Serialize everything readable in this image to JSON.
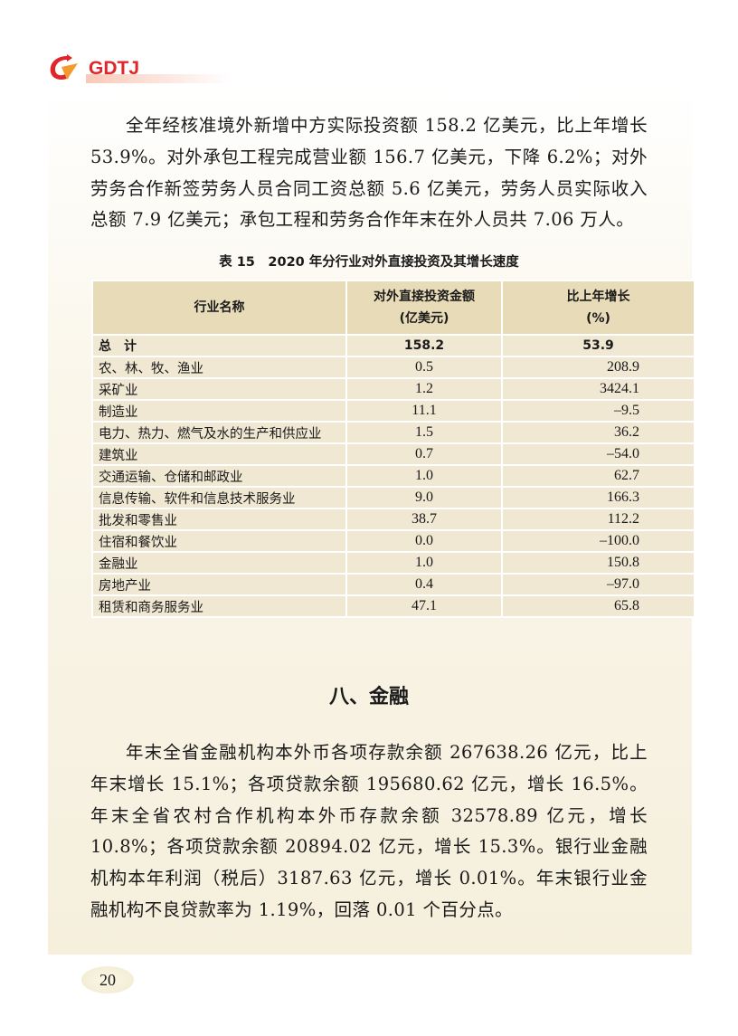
{
  "header": {
    "logo_text": "GDTJ",
    "brand_color": "#e0262a",
    "accent_color": "#f39a2c"
  },
  "intro_paragraph": "全年经核准境外新增中方实际投资额 158.2 亿美元，比上年增长 53.9%。对外承包工程完成营业额 156.7 亿美元，下降 6.2%；对外劳务合作新签劳务人员合同工资总额 5.6 亿美元，劳务人员实际收入总额 7.9 亿美元；承包工程和劳务合作年末在外人员共 7.06 万人。",
  "table": {
    "title": "表 15　2020 年分行业对外直接投资及其增长速度",
    "headers": [
      "行业名称",
      "对外直接投资金额\n(亿美元)",
      "比上年增长\n(%)"
    ],
    "rows": [
      [
        "总计",
        "158.2",
        "53.9"
      ],
      [
        "农、林、牧、渔业",
        "0.5",
        "208.9"
      ],
      [
        "采矿业",
        "1.2",
        "3424.1"
      ],
      [
        "制造业",
        "11.1",
        "–9.5"
      ],
      [
        "电力、热力、燃气及水的生产和供应业",
        "1.5",
        "36.2"
      ],
      [
        "建筑业",
        "0.7",
        "–54.0"
      ],
      [
        "交通运输、仓储和邮政业",
        "1.0",
        "62.7"
      ],
      [
        "信息传输、软件和信息技术服务业",
        "9.0",
        "166.3"
      ],
      [
        "批发和零售业",
        "38.7",
        "112.2"
      ],
      [
        "住宿和餐饮业",
        "0.0",
        "–100.0"
      ],
      [
        "金融业",
        "1.0",
        "150.8"
      ],
      [
        "房地产业",
        "0.4",
        "–97.0"
      ],
      [
        "租赁和商务服务业",
        "47.1",
        "65.8"
      ]
    ]
  },
  "section_heading": "八、金融",
  "finance_paragraph": "年末全省金融机构本外币各项存款余额 267638.26 亿元，比上年末增长 15.1%；各项贷款余额 195680.62 亿元，增长 16.5%。年末全省农村合作机构本外币存款余额 32578.89 亿元，增长 10.8%；各项贷款余额 20894.02 亿元，增长 15.3%。银行业金融机构本年利润（税后）3187.63 亿元，增长 0.01%。年末银行业金融机构不良贷款率为 1.19%，回落 0.01 个百分点。",
  "page_number": "20"
}
